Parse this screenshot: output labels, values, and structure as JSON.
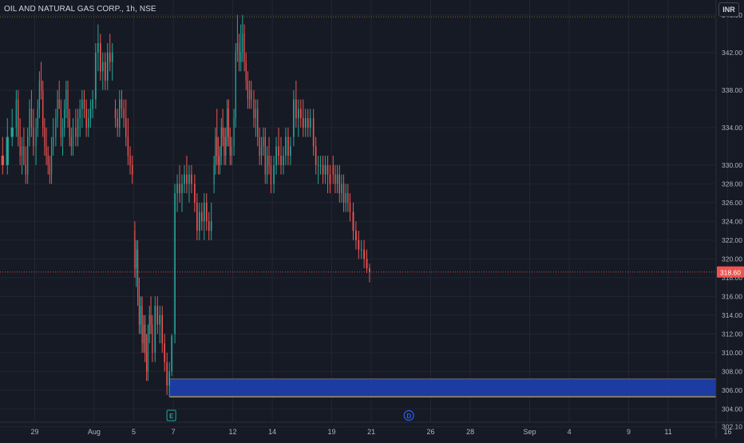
{
  "header": {
    "symbol_title": "OIL AND NATURAL GAS CORP., 1h, NSE",
    "currency_label": "INR"
  },
  "chart_data": {
    "type": "candlestick",
    "title": "OIL AND NATURAL GAS CORP., 1h, NSE",
    "ylim": [
      300.8,
      347.6
    ],
    "yticks": [
      302.1,
      304.0,
      306.0,
      308.0,
      310.0,
      312.0,
      314.0,
      316.0,
      318.0,
      320.0,
      322.0,
      324.0,
      326.0,
      328.0,
      330.0,
      334.0,
      338.0,
      342.0,
      346.0
    ],
    "xticks": [
      {
        "label": "29",
        "day": 0
      },
      {
        "label": "Aug",
        "day": 3
      },
      {
        "label": "5",
        "day": 5
      },
      {
        "label": "7",
        "day": 7
      },
      {
        "label": "12",
        "day": 10
      },
      {
        "label": "14",
        "day": 12
      },
      {
        "label": "19",
        "day": 15
      },
      {
        "label": "21",
        "day": 17
      },
      {
        "label": "26",
        "day": 20
      },
      {
        "label": "28",
        "day": 22
      },
      {
        "label": "Sep",
        "day": 25
      },
      {
        "label": "4",
        "day": 27
      },
      {
        "label": "9",
        "day": 30
      },
      {
        "label": "11",
        "day": 32
      },
      {
        "label": "16",
        "day": 35
      }
    ],
    "last_price": {
      "label": "318.60",
      "value": 318.6
    },
    "reference_line": 345.8,
    "zone": {
      "top": 307.2,
      "bottom": 305.3,
      "from_day": 7,
      "color": "#1e40af",
      "border_color": "#f5c542"
    },
    "events": [
      {
        "label": "E",
        "day": 6.9,
        "color": "#26a69a"
      },
      {
        "label": "D",
        "day": 18.9,
        "color": "#2962ff"
      }
    ],
    "colors": {
      "up": "#26a69a",
      "down": "#ef5350",
      "background": "#161a25",
      "grid": "#232632"
    },
    "days": [
      {
        "day": -1.5,
        "bars": [
          [
            330,
            334,
            328,
            331
          ],
          [
            331,
            333,
            329,
            330
          ],
          [
            330,
            335,
            329,
            333
          ],
          [
            333,
            336,
            332,
            334
          ]
        ]
      },
      {
        "day": -0.5,
        "bars": [
          [
            334,
            338,
            333,
            337
          ],
          [
            337,
            338,
            332,
            333
          ],
          [
            333,
            335,
            330,
            331
          ],
          [
            331,
            333,
            329,
            332
          ],
          [
            332,
            334,
            330,
            330
          ],
          [
            330,
            332,
            328,
            329
          ],
          [
            329,
            334,
            328,
            333
          ],
          [
            333,
            337,
            332,
            336
          ],
          [
            336,
            338,
            333,
            334
          ],
          [
            334,
            336,
            331,
            332
          ]
        ]
      },
      {
        "day": 0.5,
        "bars": [
          [
            332,
            335,
            330,
            334
          ],
          [
            334,
            337,
            333,
            336
          ],
          [
            336,
            340,
            335,
            339
          ],
          [
            339,
            341,
            337,
            338
          ],
          [
            338,
            339,
            333,
            334
          ],
          [
            334,
            335,
            331,
            332
          ],
          [
            332,
            334,
            330,
            331
          ],
          [
            331,
            332,
            329,
            330
          ],
          [
            330,
            331,
            328,
            329
          ],
          [
            329,
            333,
            328,
            332
          ],
          [
            332,
            335,
            331,
            333
          ]
        ]
      },
      {
        "day": 1.5,
        "bars": [
          [
            333,
            336,
            332,
            335
          ],
          [
            335,
            338,
            334,
            337
          ],
          [
            337,
            339,
            336,
            336
          ],
          [
            336,
            337,
            332,
            333
          ],
          [
            333,
            335,
            331,
            334
          ],
          [
            334,
            337,
            333,
            336
          ],
          [
            336,
            339,
            335,
            338
          ],
          [
            338,
            339,
            334,
            335
          ],
          [
            335,
            336,
            332,
            333
          ],
          [
            333,
            334,
            331,
            332
          ],
          [
            332,
            335,
            331,
            334
          ]
        ]
      },
      {
        "day": 2.5,
        "bars": [
          [
            334,
            336,
            332,
            333
          ],
          [
            333,
            336,
            332,
            335
          ],
          [
            335,
            337,
            333,
            336
          ],
          [
            336,
            338,
            334,
            337
          ],
          [
            337,
            338,
            335,
            336
          ],
          [
            336,
            337,
            333,
            334
          ],
          [
            334,
            336,
            333,
            335
          ],
          [
            335,
            337,
            334,
            336
          ],
          [
            336,
            338,
            335,
            337
          ]
        ]
      },
      {
        "day": 3.5,
        "bars": [
          [
            337,
            343,
            336,
            342
          ],
          [
            342,
            345,
            340,
            343
          ],
          [
            343,
            344,
            339,
            340
          ],
          [
            340,
            342,
            338,
            341
          ],
          [
            341,
            342,
            338,
            339
          ],
          [
            339,
            343,
            338,
            342
          ],
          [
            342,
            344,
            340,
            341
          ],
          [
            341,
            343,
            339,
            342
          ]
        ]
      },
      {
        "day": 4.5,
        "bars": [
          [
            336,
            337,
            334,
            335
          ],
          [
            335,
            336,
            333,
            334
          ],
          [
            334,
            338,
            333,
            337
          ],
          [
            337,
            338,
            335,
            336
          ],
          [
            336,
            337,
            334,
            335
          ],
          [
            335,
            337,
            332,
            333
          ],
          [
            333,
            335,
            330,
            331
          ],
          [
            331,
            332,
            329,
            330
          ],
          [
            330,
            331,
            328,
            329
          ]
        ]
      },
      {
        "day": 5.5,
        "bars": [
          [
            323,
            324,
            318,
            319
          ],
          [
            319,
            322,
            317,
            321
          ],
          [
            321,
            322,
            315,
            316
          ],
          [
            316,
            318,
            312,
            313
          ],
          [
            313,
            316,
            312,
            315
          ],
          [
            315,
            316,
            310,
            311
          ],
          [
            311,
            314,
            310,
            313
          ],
          [
            313,
            314,
            309,
            310
          ],
          [
            310,
            312,
            307,
            308
          ],
          [
            308,
            313,
            307,
            312
          ],
          [
            312,
            315,
            311,
            314
          ],
          [
            314,
            316,
            312,
            313
          ],
          [
            313,
            314,
            309,
            310
          ]
        ]
      },
      {
        "day": 6.5,
        "bars": [
          [
            310,
            316,
            309,
            315
          ],
          [
            315,
            316,
            312,
            313
          ],
          [
            313,
            315,
            311,
            314
          ],
          [
            314,
            315,
            310,
            311
          ],
          [
            311,
            312,
            308,
            309
          ],
          [
            309,
            310,
            305.5,
            306.5
          ],
          [
            306.5,
            309,
            305.3,
            308
          ],
          [
            308,
            312,
            307.5,
            311.8
          ]
        ]
      },
      {
        "day": 7.5,
        "bars": [
          [
            312,
            328,
            311,
            327
          ],
          [
            327,
            329,
            325,
            328
          ],
          [
            328,
            330,
            326,
            327
          ],
          [
            327,
            329,
            325,
            328
          ],
          [
            328,
            330,
            327,
            329
          ],
          [
            329,
            331,
            327,
            328
          ],
          [
            328,
            330,
            326,
            329
          ],
          [
            329,
            330,
            327,
            328
          ]
        ]
      },
      {
        "day": 8.5,
        "bars": [
          [
            328,
            329,
            325,
            326
          ],
          [
            326,
            327,
            322,
            323
          ],
          [
            323,
            326,
            322,
            325
          ],
          [
            325,
            326,
            323,
            324
          ],
          [
            324,
            327,
            322,
            326
          ],
          [
            326,
            327,
            323,
            324
          ],
          [
            324,
            325,
            322,
            323
          ],
          [
            323,
            326,
            322,
            324
          ]
        ]
      },
      {
        "day": 9.5,
        "bars": [
          [
            328,
            331,
            327,
            330
          ],
          [
            330,
            334,
            329,
            333
          ],
          [
            333,
            336,
            330,
            331
          ],
          [
            331,
            333,
            329,
            330
          ],
          [
            330,
            332,
            329,
            331
          ],
          [
            331,
            335,
            330,
            334
          ],
          [
            334,
            336,
            332,
            333
          ],
          [
            333,
            334,
            330,
            331
          ],
          [
            331,
            334,
            330,
            333
          ],
          [
            333,
            337,
            332,
            336
          ],
          [
            336,
            337,
            332,
            333
          ],
          [
            333,
            334,
            330,
            331
          ],
          [
            331,
            333,
            330,
            332
          ]
        ]
      },
      {
        "day": 10.5,
        "bars": [
          [
            332,
            336,
            331,
            335
          ],
          [
            335,
            343,
            334,
            342
          ],
          [
            342,
            346,
            341,
            343
          ],
          [
            343,
            344,
            340,
            341
          ],
          [
            341,
            345,
            340,
            342
          ],
          [
            342,
            346,
            341,
            344
          ],
          [
            344,
            345,
            340,
            341
          ],
          [
            341,
            342,
            338,
            339
          ],
          [
            339,
            340,
            336,
            337
          ],
          [
            337,
            339,
            336,
            338
          ],
          [
            338,
            339,
            336,
            337
          ]
        ]
      },
      {
        "day": 11.5,
        "bars": [
          [
            337,
            338,
            334,
            335
          ],
          [
            335,
            337,
            333,
            336
          ],
          [
            336,
            337,
            332,
            333
          ],
          [
            333,
            334,
            330,
            331
          ],
          [
            331,
            333,
            330,
            332
          ],
          [
            332,
            334,
            331,
            333
          ],
          [
            333,
            334,
            328,
            329
          ],
          [
            329,
            332,
            328,
            331
          ],
          [
            331,
            333,
            329,
            330
          ],
          [
            330,
            331,
            327,
            328
          ]
        ]
      },
      {
        "day": 12.5,
        "bars": [
          [
            328,
            331,
            327,
            330
          ],
          [
            330,
            333,
            329,
            332
          ],
          [
            332,
            334,
            330,
            331
          ],
          [
            331,
            333,
            329,
            330
          ],
          [
            330,
            332,
            329,
            331
          ],
          [
            331,
            334,
            330,
            333
          ],
          [
            333,
            334,
            330,
            331
          ],
          [
            331,
            333,
            330,
            332
          ]
        ]
      },
      {
        "day": 13.5,
        "bars": [
          [
            333,
            338,
            332,
            337
          ],
          [
            337,
            339,
            334,
            335
          ],
          [
            335,
            337,
            333,
            336
          ],
          [
            336,
            337,
            334,
            335
          ],
          [
            335,
            337,
            333,
            334
          ],
          [
            334,
            336,
            333,
            335
          ],
          [
            335,
            336,
            333,
            334
          ],
          [
            334,
            336,
            333,
            335
          ]
        ]
      },
      {
        "day": 14.5,
        "bars": [
          [
            335,
            336,
            331,
            332
          ],
          [
            332,
            333,
            329,
            330
          ],
          [
            330,
            331,
            328,
            330
          ],
          [
            330,
            331,
            329,
            330
          ],
          [
            330,
            331,
            328,
            329
          ],
          [
            329,
            331,
            328,
            330
          ],
          [
            330,
            331,
            327,
            329
          ],
          [
            329,
            330,
            327,
            328
          ]
        ]
      },
      {
        "day": 15.5,
        "bars": [
          [
            330,
            331,
            328,
            329
          ],
          [
            329,
            330,
            327,
            328
          ],
          [
            328,
            330,
            327,
            329
          ],
          [
            329,
            330,
            326,
            327
          ],
          [
            327,
            329,
            326,
            328
          ],
          [
            328,
            329,
            325,
            326
          ],
          [
            326,
            328,
            325,
            327
          ],
          [
            327,
            328,
            325,
            326
          ],
          [
            326,
            327,
            324,
            325
          ]
        ]
      },
      {
        "day": 16.5,
        "bars": [
          [
            325,
            326,
            322,
            323
          ],
          [
            323,
            324,
            321,
            322
          ],
          [
            322,
            323,
            320,
            321
          ],
          [
            321,
            322,
            320,
            321
          ],
          [
            321,
            322,
            319,
            320
          ],
          [
            320,
            321,
            318.5,
            319
          ],
          [
            319,
            319.5,
            317.5,
            318.6
          ]
        ]
      }
    ]
  }
}
